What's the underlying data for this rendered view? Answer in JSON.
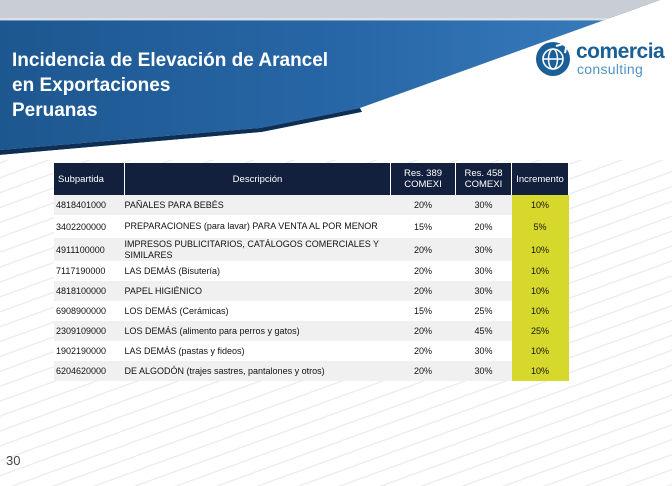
{
  "slide": {
    "title_lines": [
      "Incidencia de Elevación de Arancel",
      "en Exportaciones",
      "Peruanas"
    ],
    "page_number": "30",
    "logo": {
      "word": "comercia",
      "sub": "consulting",
      "icon": "globe-icon"
    },
    "colors": {
      "header_band": "#1e5a93",
      "table_header": "#12203d",
      "increment_highlight": "#d6d82b"
    }
  },
  "table": {
    "headers": {
      "subpartida": "Subpartida",
      "descripcion": "Descripción",
      "res389": "Res. 389 COMEXI",
      "res458": "Res. 458 COMEXI",
      "incremento": "Incremento"
    },
    "rows": [
      {
        "subpartida": "4818401000",
        "descripcion": "PAÑALES PARA BEBÉS",
        "res389": "20%",
        "res458": "30%",
        "incremento": "10%"
      },
      {
        "subpartida": "3402200000",
        "descripcion": "PREPARACIONES (para lavar) PARA VENTA AL POR MENOR",
        "res389": "15%",
        "res458": "20%",
        "incremento": "5%"
      },
      {
        "subpartida": "4911100000",
        "descripcion": "IMPRESOS PUBLICITARIOS, CATÁLOGOS COMERCIALES Y SIMILARES",
        "res389": "20%",
        "res458": "30%",
        "incremento": "10%"
      },
      {
        "subpartida": "7117190000",
        "descripcion": "LAS DEMÁS (Bisutería)",
        "res389": "20%",
        "res458": "30%",
        "incremento": "10%"
      },
      {
        "subpartida": "4818100000",
        "descripcion": "PAPEL HIGIÉNICO",
        "res389": "20%",
        "res458": "30%",
        "incremento": "10%"
      },
      {
        "subpartida": "6908900000",
        "descripcion": "LOS DEMÁS (Cerámicas)",
        "res389": "15%",
        "res458": "25%",
        "incremento": "10%"
      },
      {
        "subpartida": "2309109000",
        "descripcion": "LOS DEMÁS (alimento para perros y gatos)",
        "res389": "20%",
        "res458": "45%",
        "incremento": "25%"
      },
      {
        "subpartida": "1902190000",
        "descripcion": "LAS DEMÁS (pastas y fideos)",
        "res389": "20%",
        "res458": "30%",
        "incremento": "10%"
      },
      {
        "subpartida": "6204620000",
        "descripcion": "DE ALGODÓN (trajes sastres, pantalones y otros)",
        "res389": "20%",
        "res458": "30%",
        "incremento": "10%"
      }
    ]
  }
}
